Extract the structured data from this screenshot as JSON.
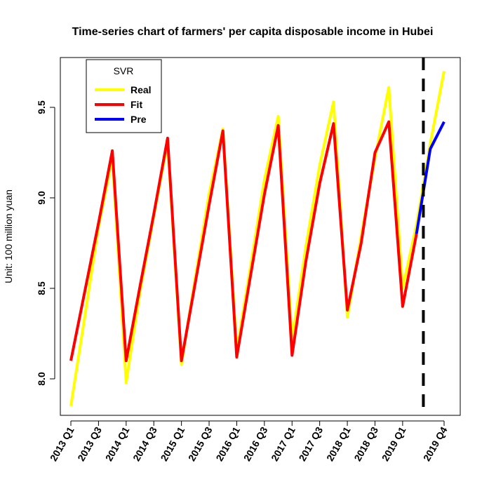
{
  "chart_data": {
    "type": "line",
    "title": "Time-series chart of farmers' per capita disposable income in Hubei",
    "xlabel": "",
    "ylabel": "Unit: 100 million yuan",
    "ylim": [
      7.8,
      9.8
    ],
    "yticks": [
      8.0,
      8.5,
      9.0,
      9.5
    ],
    "ytick_labels": [
      "8.0",
      "8.5",
      "9.0",
      "9.5"
    ],
    "x": [
      "2013 Q1",
      "2013 Q2",
      "2013 Q3",
      "2013 Q4",
      "2014 Q1",
      "2014 Q2",
      "2014 Q3",
      "2014 Q4",
      "2015 Q1",
      "2015 Q2",
      "2015 Q3",
      "2015 Q4",
      "2016 Q1",
      "2016 Q2",
      "2016 Q3",
      "2016 Q4",
      "2017 Q1",
      "2017 Q2",
      "2017 Q3",
      "2017 Q4",
      "2018 Q1",
      "2018 Q2",
      "2018 Q3",
      "2018 Q4",
      "2019 Q1",
      "2019 Q2",
      "2019 Q3",
      "2019 Q4"
    ],
    "xtick_labels": [
      "2013 Q1",
      "2013 Q3",
      "2014 Q1",
      "2014 Q3",
      "2015 Q1",
      "2015 Q3",
      "2016 Q1",
      "2016 Q3",
      "2017 Q1",
      "2017 Q3",
      "2018 Q1",
      "2018 Q3",
      "2019 Q1",
      "2019 Q4"
    ],
    "xtick_positions": [
      "2013 Q1",
      "2013 Q3",
      "2014 Q1",
      "2014 Q3",
      "2015 Q1",
      "2015 Q3",
      "2016 Q1",
      "2016 Q3",
      "2017 Q1",
      "2017 Q3",
      "2018 Q1",
      "2018 Q3",
      "2019 Q1",
      "2019 Q4"
    ],
    "series": [
      {
        "name": "Real",
        "color": "#ffff00",
        "x": [
          "2013 Q1",
          "2013 Q2",
          "2013 Q3",
          "2013 Q4",
          "2014 Q1",
          "2014 Q2",
          "2014 Q3",
          "2014 Q4",
          "2015 Q1",
          "2015 Q2",
          "2015 Q3",
          "2015 Q4",
          "2016 Q1",
          "2016 Q2",
          "2016 Q3",
          "2016 Q4",
          "2017 Q1",
          "2017 Q2",
          "2017 Q3",
          "2017 Q4",
          "2018 Q1",
          "2018 Q2",
          "2018 Q3",
          "2018 Q4",
          "2019 Q1",
          "2019 Q2",
          "2019 Q3",
          "2019 Q4"
        ],
        "values": [
          7.85,
          8.34,
          8.84,
          9.22,
          7.98,
          8.48,
          8.9,
          9.31,
          8.08,
          8.56,
          9.02,
          9.38,
          8.16,
          8.62,
          9.1,
          9.45,
          8.21,
          8.73,
          9.18,
          9.53,
          8.34,
          8.79,
          9.22,
          9.61,
          8.5,
          8.85,
          9.3,
          9.7
        ]
      },
      {
        "name": "Fit",
        "color": "#ff0000",
        "x": [
          "2013 Q1",
          "2013 Q2",
          "2013 Q3",
          "2013 Q4",
          "2014 Q1",
          "2014 Q2",
          "2014 Q3",
          "2014 Q4",
          "2015 Q1",
          "2015 Q2",
          "2015 Q3",
          "2015 Q4",
          "2016 Q1",
          "2016 Q2",
          "2016 Q3",
          "2016 Q4",
          "2017 Q1",
          "2017 Q2",
          "2017 Q3",
          "2017 Q4",
          "2018 Q1",
          "2018 Q2",
          "2018 Q3",
          "2018 Q4",
          "2019 Q1",
          "2019 Q2"
        ],
        "values": [
          8.1,
          8.48,
          8.86,
          9.26,
          8.1,
          8.51,
          8.91,
          9.33,
          8.1,
          8.53,
          8.96,
          9.37,
          8.12,
          8.57,
          9.02,
          9.4,
          8.13,
          8.65,
          9.08,
          9.41,
          8.38,
          8.75,
          9.25,
          9.42,
          8.4,
          8.8
        ]
      },
      {
        "name": "Pre",
        "color": "#0000ff",
        "x": [
          "2019 Q2",
          "2019 Q3",
          "2019 Q4"
        ],
        "values": [
          8.8,
          9.27,
          9.42
        ]
      }
    ],
    "vline": {
      "x": "2019 Q2.5",
      "style": "dashed",
      "color": "#000000"
    },
    "legend": {
      "title": "SVR",
      "placement": "top-left",
      "entries": [
        {
          "label": "Real",
          "color": "#ffff00"
        },
        {
          "label": "Fit",
          "color": "#ff0000"
        },
        {
          "label": "Pre",
          "color": "#0000ff"
        }
      ]
    },
    "grid": false
  }
}
